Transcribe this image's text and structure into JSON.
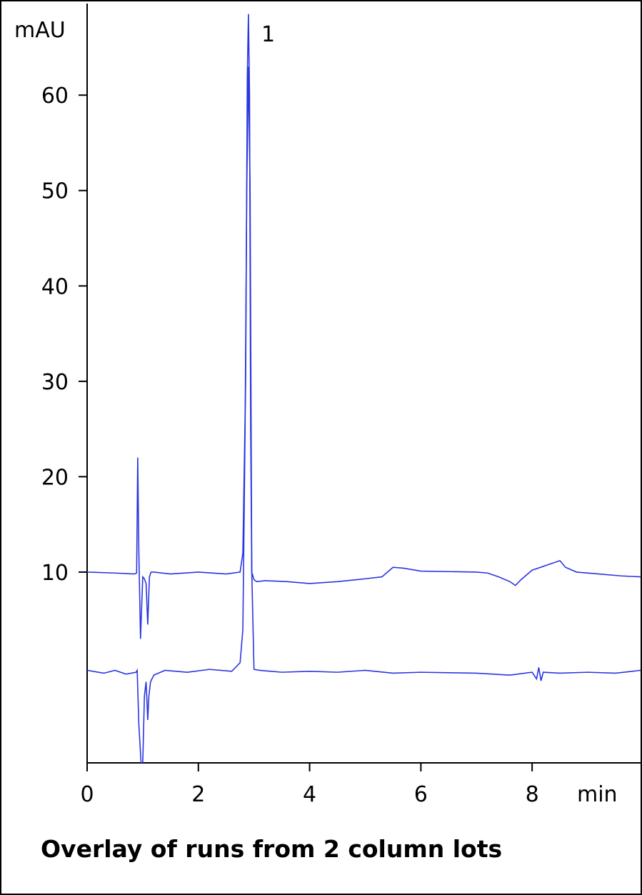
{
  "chart_data": {
    "type": "line",
    "title": "Overlay of runs from 2 column lots",
    "y_label": "mAU",
    "x_label": "min",
    "peak_label": "1",
    "xlim": [
      0,
      9.95
    ],
    "ylim": [
      -10,
      69.6
    ],
    "xticks": [
      0,
      2,
      4,
      6,
      8
    ],
    "yticks": [
      10,
      20,
      30,
      40,
      50,
      60
    ],
    "series": [
      {
        "color": "#2a35e0",
        "x": [
          0,
          0.5,
          0.85,
          0.89,
          0.91,
          0.93,
          0.96,
          1.0,
          1.03,
          1.06,
          1.09,
          1.12,
          1.15,
          1.2,
          1.5,
          2.0,
          2.5,
          2.75,
          2.8,
          2.85,
          2.88,
          2.9,
          2.92,
          2.94,
          2.96,
          3.0,
          3.05,
          3.2,
          3.6,
          4.0,
          4.5,
          5.0,
          5.3,
          5.5,
          5.7,
          6.0,
          7.0,
          7.2,
          7.4,
          7.6,
          7.7,
          7.8,
          8.0,
          8.3,
          8.5,
          8.6,
          8.8,
          9.2,
          9.6,
          9.95
        ],
        "values": [
          10,
          9.9,
          9.8,
          9.9,
          22,
          12,
          3,
          9.5,
          9.3,
          8.8,
          4.5,
          9.5,
          10,
          10,
          9.8,
          10,
          9.8,
          10,
          12,
          30,
          62,
          68.5,
          60,
          25,
          10,
          9.2,
          9.0,
          9.1,
          9.0,
          8.8,
          9.0,
          9.3,
          9.5,
          10.5,
          10.4,
          10.1,
          10.0,
          9.9,
          9.5,
          9.0,
          8.6,
          9.2,
          10.2,
          10.8,
          11.2,
          10.5,
          10.0,
          9.8,
          9.6,
          9.5
        ]
      },
      {
        "color": "#2a35e0",
        "x": [
          0,
          0.3,
          0.5,
          0.7,
          0.88,
          0.9,
          0.93,
          0.97,
          1.0,
          1.03,
          1.06,
          1.09,
          1.11,
          1.14,
          1.2,
          1.4,
          1.8,
          2.2,
          2.6,
          2.75,
          2.8,
          2.84,
          2.87,
          2.9,
          2.93,
          2.96,
          3.0,
          3.1,
          3.5,
          4.0,
          4.5,
          5.0,
          5.5,
          6.0,
          7.0,
          7.6,
          8.0,
          8.08,
          8.12,
          8.16,
          8.2,
          8.5,
          9.0,
          9.5,
          9.95
        ],
        "values": [
          -0.3,
          -0.6,
          -0.3,
          -0.7,
          -0.5,
          -0.3,
          -6,
          -10,
          -10,
          -3,
          -1.5,
          -5.5,
          -3,
          -1.5,
          -0.8,
          -0.3,
          -0.5,
          -0.2,
          -0.4,
          0.5,
          4,
          25,
          50,
          63,
          50,
          10,
          -0.2,
          -0.3,
          -0.5,
          -0.4,
          -0.5,
          -0.3,
          -0.6,
          -0.5,
          -0.6,
          -0.8,
          -0.5,
          -1.2,
          0,
          -1.4,
          -0.5,
          -0.6,
          -0.5,
          -0.6,
          -0.3
        ]
      }
    ]
  }
}
